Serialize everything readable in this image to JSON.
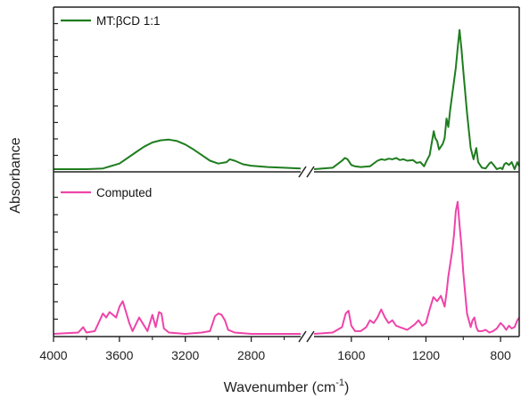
{
  "chart_data": {
    "type": "line",
    "xlabel": "Wavenumber (cm",
    "xlabel_sup": "-1",
    "xlabel_close": ")",
    "ylabel": "Absorbance",
    "x_axis": {
      "reversed": true,
      "break": true,
      "segments": [
        {
          "range": [
            4000,
            2500
          ],
          "ticks": [
            4000,
            3600,
            3200,
            2800
          ]
        },
        {
          "range": [
            1800,
            700
          ],
          "ticks": [
            1600,
            1200,
            800
          ]
        }
      ]
    },
    "grid": false,
    "legend_placement": "top-left",
    "series": [
      {
        "name": "MT:βCD 1:1",
        "color": "#1e7d1e",
        "panel": "top",
        "ylim": [
          0,
          1
        ],
        "x": [
          4000,
          3800,
          3700,
          3600,
          3500,
          3450,
          3400,
          3350,
          3300,
          3250,
          3200,
          3150,
          3100,
          3050,
          3000,
          2950,
          2930,
          2900,
          2850,
          2800,
          2700,
          2600,
          2500,
          1800,
          1700,
          1650,
          1635,
          1620,
          1600,
          1580,
          1550,
          1500,
          1460,
          1440,
          1420,
          1400,
          1380,
          1360,
          1340,
          1320,
          1300,
          1270,
          1250,
          1230,
          1210,
          1200,
          1180,
          1158,
          1150,
          1140,
          1130,
          1110,
          1100,
          1090,
          1080,
          1070,
          1060,
          1040,
          1030,
          1020,
          1010,
          1000,
          990,
          980,
          960,
          945,
          930,
          920,
          900,
          880,
          860,
          850,
          840,
          820,
          800,
          790,
          780,
          770,
          755,
          740,
          725,
          710,
          700
        ],
        "y": [
          0.0,
          0.0,
          0.005,
          0.04,
          0.12,
          0.16,
          0.19,
          0.205,
          0.21,
          0.2,
          0.175,
          0.14,
          0.1,
          0.06,
          0.04,
          0.05,
          0.07,
          0.06,
          0.035,
          0.025,
          0.015,
          0.01,
          0.005,
          0.0,
          0.01,
          0.06,
          0.08,
          0.07,
          0.03,
          0.02,
          0.015,
          0.02,
          0.06,
          0.07,
          0.065,
          0.075,
          0.07,
          0.08,
          0.065,
          0.07,
          0.06,
          0.065,
          0.045,
          0.05,
          0.02,
          0.05,
          0.1,
          0.27,
          0.22,
          0.2,
          0.14,
          0.18,
          0.22,
          0.36,
          0.3,
          0.42,
          0.52,
          0.72,
          0.86,
          0.99,
          0.86,
          0.7,
          0.55,
          0.4,
          0.15,
          0.07,
          0.15,
          0.05,
          0.01,
          0.005,
          0.04,
          0.05,
          0.035,
          0.0,
          0.01,
          0.0,
          0.035,
          0.045,
          0.03,
          0.05,
          0.0,
          0.05,
          0.02
        ]
      },
      {
        "name": "Computed",
        "color": "#ee44aa",
        "panel": "bottom",
        "ylim": [
          0,
          1
        ],
        "x": [
          4000,
          3850,
          3820,
          3800,
          3750,
          3700,
          3680,
          3660,
          3620,
          3600,
          3580,
          3555,
          3540,
          3520,
          3480,
          3450,
          3430,
          3400,
          3380,
          3360,
          3345,
          3330,
          3300,
          3200,
          3100,
          3050,
          3020,
          3000,
          2980,
          2960,
          2940,
          2900,
          2800,
          2700,
          2600,
          2500,
          1800,
          1700,
          1650,
          1630,
          1615,
          1600,
          1580,
          1550,
          1520,
          1500,
          1480,
          1460,
          1440,
          1420,
          1400,
          1380,
          1360,
          1340,
          1320,
          1300,
          1280,
          1260,
          1240,
          1220,
          1200,
          1180,
          1160,
          1140,
          1120,
          1100,
          1090,
          1080,
          1060,
          1050,
          1040,
          1030,
          1020,
          1010,
          1000,
          990,
          980,
          960,
          950,
          940,
          930,
          920,
          900,
          880,
          860,
          840,
          820,
          800,
          785,
          770,
          755,
          740,
          725,
          710,
          700
        ],
        "y": [
          0.0,
          0.01,
          0.05,
          0.01,
          0.02,
          0.15,
          0.12,
          0.16,
          0.12,
          0.2,
          0.24,
          0.14,
          0.08,
          0.02,
          0.12,
          0.06,
          0.02,
          0.14,
          0.05,
          0.16,
          0.15,
          0.04,
          0.01,
          0.0,
          0.01,
          0.02,
          0.13,
          0.15,
          0.14,
          0.1,
          0.03,
          0.01,
          0.0,
          0.0,
          0.0,
          0.0,
          0.0,
          0.01,
          0.05,
          0.15,
          0.17,
          0.06,
          0.02,
          0.02,
          0.05,
          0.1,
          0.08,
          0.12,
          0.18,
          0.12,
          0.08,
          0.1,
          0.06,
          0.05,
          0.04,
          0.03,
          0.05,
          0.07,
          0.1,
          0.06,
          0.08,
          0.18,
          0.27,
          0.24,
          0.28,
          0.2,
          0.3,
          0.42,
          0.6,
          0.72,
          0.9,
          0.97,
          0.8,
          0.65,
          0.45,
          0.3,
          0.15,
          0.05,
          0.1,
          0.12,
          0.05,
          0.02,
          0.02,
          0.03,
          0.01,
          0.02,
          0.04,
          0.08,
          0.06,
          0.03,
          0.06,
          0.04,
          0.05,
          0.1,
          0.12
        ]
      }
    ]
  }
}
